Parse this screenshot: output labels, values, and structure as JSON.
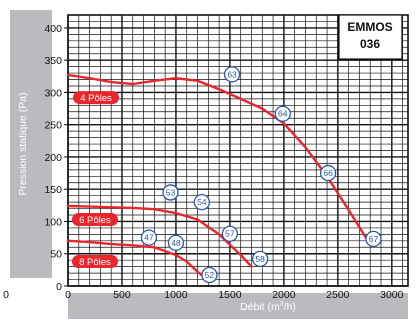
{
  "model": {
    "line1": "EMMOS",
    "line2": "036"
  },
  "chart_data": {
    "type": "line",
    "xlabel_prefix": "Débit (m",
    "xlabel_sup": "3",
    "xlabel_suffix": "/h)",
    "ylabel": "Pression statique  (Pa)",
    "xlim": [
      0,
      3150
    ],
    "ylim": [
      0,
      420
    ],
    "x_ticks": [
      0,
      500,
      1000,
      1500,
      2000,
      2500,
      3000
    ],
    "y_ticks": [
      0,
      50,
      100,
      150,
      200,
      250,
      300,
      350,
      400
    ],
    "outside_tick_label": "0",
    "grid": true,
    "curve_color": "#e8262b",
    "series": [
      {
        "name": "4 Pôles",
        "x": [
          0,
          200,
          400,
          600,
          800,
          1000,
          1200,
          1400,
          1600,
          1800,
          2000,
          2200,
          2400,
          2600,
          2760
        ],
        "y": [
          327,
          322,
          316,
          313,
          318,
          322,
          318,
          305,
          290,
          275,
          252,
          215,
          170,
          118,
          75
        ],
        "label_pos": [
          260,
          292
        ]
      },
      {
        "name": "6 Pôles",
        "x": [
          0,
          200,
          400,
          600,
          800,
          1000,
          1200,
          1400,
          1600,
          1700
        ],
        "y": [
          124,
          123,
          122,
          121,
          119,
          113,
          103,
          80,
          48,
          30
        ],
        "label_pos": [
          250,
          103
        ]
      },
      {
        "name": "8 Pôles",
        "x": [
          0,
          200,
          400,
          600,
          800,
          1000,
          1100,
          1200,
          1260
        ],
        "y": [
          70,
          68,
          65,
          63,
          60,
          48,
          38,
          22,
          14
        ],
        "label_pos": [
          250,
          38
        ]
      }
    ],
    "markers": [
      {
        "label": "63",
        "x": 1520,
        "y": 328
      },
      {
        "label": "64",
        "x": 1990,
        "y": 267
      },
      {
        "label": "66",
        "x": 2410,
        "y": 175
      },
      {
        "label": "67",
        "x": 2830,
        "y": 73
      },
      {
        "label": "53",
        "x": 950,
        "y": 145
      },
      {
        "label": "54",
        "x": 1240,
        "y": 130
      },
      {
        "label": "57",
        "x": 1500,
        "y": 81
      },
      {
        "label": "58",
        "x": 1780,
        "y": 42
      },
      {
        "label": "47",
        "x": 750,
        "y": 75
      },
      {
        "label": "48",
        "x": 1000,
        "y": 67
      },
      {
        "label": "52",
        "x": 1310,
        "y": 17
      }
    ]
  }
}
